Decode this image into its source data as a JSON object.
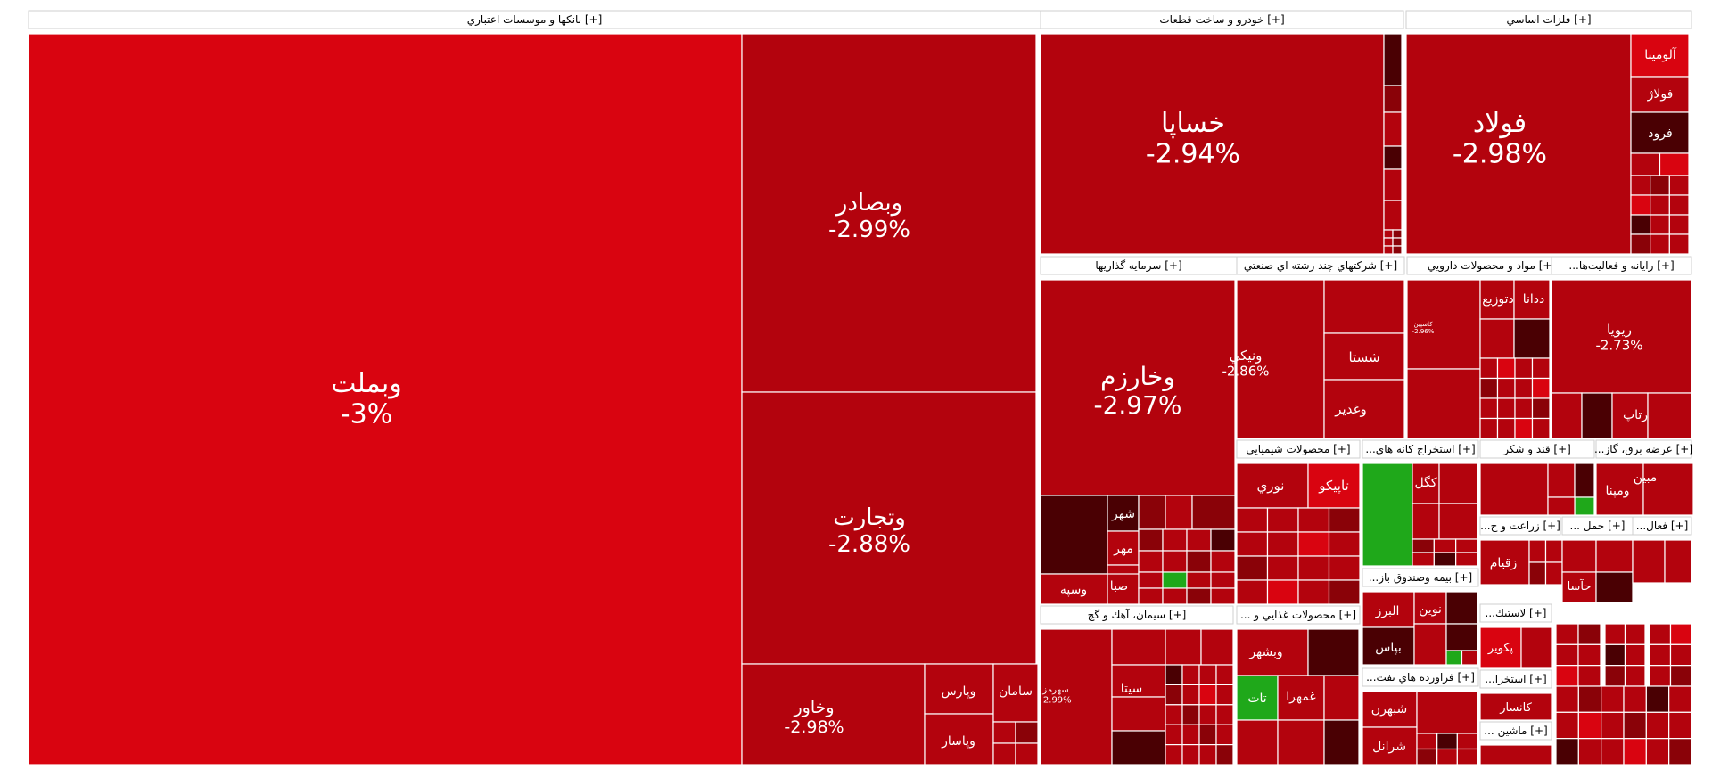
{
  "colors": {
    "red_bright": "#d90410",
    "red_mid": "#b3030d",
    "red_dark": "#8a0208",
    "red_deep": "#4a0003",
    "green": "#1fa81a",
    "header_bg": "#ffffff",
    "border": "#ffffff"
  },
  "chart_data": {
    "type": "treemap",
    "sectors": [
      {
        "name": "بانکها و موسسات اعتباري [+]",
        "tiles": [
          {
            "symbol": "وبملت",
            "change": "-3%"
          },
          {
            "symbol": "وبصادر",
            "change": "-2.99%"
          },
          {
            "symbol": "وتجارت",
            "change": "-2.88%"
          },
          {
            "symbol": "وخاور",
            "change": "-2.98%"
          },
          {
            "symbol": "وپارس",
            "change": ""
          },
          {
            "symbol": "وپاسار",
            "change": ""
          },
          {
            "symbol": "سامان",
            "change": ""
          }
        ]
      },
      {
        "name": "خودرو و ساخت قطعات [+]",
        "tiles": [
          {
            "symbol": "خساپا",
            "change": "-2.94%"
          }
        ]
      },
      {
        "name": "فلزات اساسي [+]",
        "tiles": [
          {
            "symbol": "فولاد",
            "change": "-2.98%"
          },
          {
            "symbol": "آلومينا",
            "change": ""
          },
          {
            "symbol": "فولاژ",
            "change": ""
          },
          {
            "symbol": "فرود",
            "change": ""
          }
        ]
      },
      {
        "name": "سرمايه گذاريها [+]",
        "tiles": [
          {
            "symbol": "وخارزم",
            "change": "-2.97%"
          },
          {
            "symbol": "شهر",
            "change": ""
          },
          {
            "symbol": "مهر",
            "change": ""
          },
          {
            "symbol": "صبا",
            "change": ""
          },
          {
            "symbol": "وسپه",
            "change": ""
          }
        ]
      },
      {
        "name": "شرکتهاي چند رشته اي صنعتي [+]",
        "tiles": [
          {
            "symbol": "ونيكي",
            "change": "-2.86%"
          },
          {
            "symbol": "شستا",
            "change": ""
          },
          {
            "symbol": "وغدير",
            "change": ""
          }
        ]
      },
      {
        "name": "مواد و محصولات دارويي [+]",
        "tiles": [
          {
            "symbol": "دتوزيع",
            "change": ""
          },
          {
            "symbol": "ددانا",
            "change": ""
          },
          {
            "symbol": "كاسپين",
            "change": "-2.96%"
          }
        ]
      },
      {
        "name": "...رايانه و فعاليت‌ها [+]",
        "tiles": [
          {
            "symbol": "ريويا",
            "change": "-2.73%"
          },
          {
            "symbol": "رتاپ",
            "change": ""
          }
        ]
      },
      {
        "name": "محصولات شيميايي [+]",
        "tiles": [
          {
            "symbol": "تاپيكو",
            "change": ""
          },
          {
            "symbol": "نوري",
            "change": ""
          }
        ]
      },
      {
        "name": "...استخراج كانه هاي [+]",
        "tiles": [
          {
            "symbol": "كگل",
            "change": ""
          }
        ]
      },
      {
        "name": "قند و شكر [+]",
        "tiles": []
      },
      {
        "name": "...عرضه برق، گاز [+]",
        "tiles": [
          {
            "symbol": "مبين",
            "change": ""
          },
          {
            "symbol": "ومپنا",
            "change": ""
          }
        ]
      },
      {
        "name": "سيمان، آهك و گچ [+]",
        "tiles": [
          {
            "symbol": "سهرمز",
            "change": "-2.99%"
          },
          {
            "symbol": "سيتا",
            "change": ""
          }
        ]
      },
      {
        "name": "... محصولات غذايي و [+]",
        "tiles": [
          {
            "symbol": "وبشهر",
            "change": ""
          },
          {
            "symbol": "غمهرا",
            "change": ""
          },
          {
            "symbol": "تات",
            "change": ""
          }
        ]
      },
      {
        "name": "...بيمه وصندوق باز [+]",
        "tiles": [
          {
            "symbol": "نوين",
            "change": ""
          },
          {
            "symbol": "البرز",
            "change": ""
          },
          {
            "symbol": "بپاس",
            "change": ""
          }
        ]
      },
      {
        "name": "...فراورده هاي نفت [+]",
        "tiles": [
          {
            "symbol": "شبهرن",
            "change": ""
          },
          {
            "symbol": "شرانل",
            "change": ""
          }
        ]
      },
      {
        "name": "...زراعت و خ [+]",
        "tiles": [
          {
            "symbol": "زقيام",
            "change": ""
          }
        ]
      },
      {
        "name": "... حمل [+]",
        "tiles": [
          {
            "symbol": "حآسا",
            "change": ""
          }
        ]
      },
      {
        "name": "...فعال [+]",
        "tiles": []
      },
      {
        "name": "...لاستيك [+]",
        "tiles": [
          {
            "symbol": "پكوير",
            "change": ""
          }
        ]
      },
      {
        "name": "...استخرا [+]",
        "tiles": [
          {
            "symbol": "كانسار",
            "change": ""
          }
        ]
      },
      {
        "name": "... ماشين [+]",
        "tiles": []
      }
    ]
  }
}
